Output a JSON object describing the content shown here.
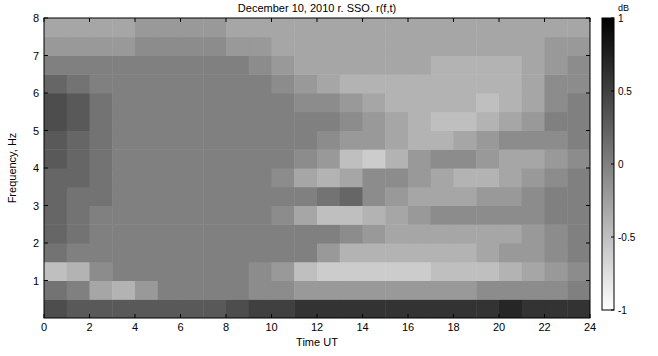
{
  "chart_data": {
    "type": "heatmap",
    "title": "December 10, 2010 r. SSO. r(f,t)",
    "xlabel": "Time UT",
    "ylabel": "Frequency, Hz",
    "color": "gray",
    "xlim": [
      0,
      24
    ],
    "ylim": [
      0,
      8
    ],
    "xticks": [
      0,
      2,
      4,
      6,
      8,
      10,
      12,
      14,
      16,
      18,
      20,
      22,
      24
    ],
    "yticks": [
      1,
      2,
      3,
      4,
      5,
      6,
      7,
      8
    ],
    "x_edges": [
      0,
      1,
      2,
      3,
      4,
      5,
      6,
      7,
      8,
      9,
      10,
      11,
      12,
      13,
      14,
      15,
      16,
      17,
      18,
      19,
      20,
      21,
      22,
      23,
      24
    ],
    "y_edges": [
      0,
      0.5,
      1,
      1.5,
      2,
      2.5,
      3,
      3.5,
      4,
      4.5,
      5,
      5.5,
      6,
      6.5,
      7,
      7.5,
      8
    ],
    "zlabel": "dB",
    "zlim": [
      -1,
      1
    ],
    "zticks": [
      -1,
      -0.5,
      0,
      0.5,
      1
    ],
    "values": [
      [
        0.4,
        0.3,
        0.3,
        0.3,
        0.3,
        0.3,
        0.3,
        0.3,
        0.4,
        0.5,
        0.5,
        0.6,
        0.6,
        0.6,
        0.6,
        0.6,
        0.6,
        0.6,
        0.6,
        0.6,
        0.7,
        0.6,
        0.6,
        0.6
      ],
      [
        0.1,
        0.0,
        -0.3,
        -0.4,
        -0.2,
        0.0,
        0.0,
        0.0,
        0.0,
        -0.1,
        -0.1,
        -0.2,
        -0.2,
        -0.2,
        -0.2,
        -0.2,
        -0.2,
        -0.2,
        -0.2,
        -0.1,
        -0.1,
        -0.1,
        -0.1,
        0.0
      ],
      [
        -0.5,
        -0.4,
        -0.1,
        0.0,
        0.0,
        0.0,
        0.0,
        0.0,
        0.0,
        -0.1,
        -0.2,
        -0.5,
        -0.6,
        -0.6,
        -0.6,
        -0.6,
        -0.6,
        -0.5,
        -0.5,
        -0.5,
        -0.4,
        -0.3,
        -0.2,
        -0.1
      ],
      [
        0.1,
        0.0,
        0.0,
        0.0,
        0.0,
        0.0,
        0.0,
        0.0,
        0.0,
        0.0,
        0.0,
        0.0,
        -0.2,
        -0.4,
        -0.4,
        -0.4,
        -0.4,
        -0.4,
        -0.4,
        -0.3,
        -0.2,
        -0.2,
        -0.1,
        0.0
      ],
      [
        0.2,
        0.1,
        0.0,
        0.0,
        0.0,
        0.0,
        0.0,
        0.0,
        0.0,
        0.0,
        0.0,
        0.0,
        0.0,
        -0.1,
        -0.2,
        -0.3,
        -0.3,
        -0.3,
        -0.3,
        -0.3,
        -0.3,
        -0.2,
        -0.1,
        0.0
      ],
      [
        0.2,
        0.1,
        0.0,
        0.0,
        0.0,
        0.0,
        0.0,
        0.0,
        0.0,
        0.0,
        -0.1,
        -0.3,
        -0.5,
        -0.5,
        -0.4,
        -0.3,
        -0.2,
        -0.1,
        -0.1,
        -0.1,
        -0.1,
        -0.1,
        0.0,
        0.0
      ],
      [
        0.2,
        0.1,
        0.1,
        0.0,
        0.0,
        0.0,
        0.0,
        0.0,
        0.0,
        0.0,
        0.0,
        0.0,
        0.1,
        0.2,
        -0.1,
        -0.2,
        -0.3,
        -0.3,
        -0.3,
        -0.2,
        -0.2,
        -0.1,
        0.0,
        0.0
      ],
      [
        0.2,
        0.2,
        0.1,
        0.0,
        0.0,
        0.0,
        0.0,
        0.0,
        0.0,
        0.0,
        -0.1,
        -0.3,
        -0.4,
        -0.3,
        -0.1,
        -0.1,
        -0.2,
        -0.3,
        -0.4,
        -0.4,
        -0.3,
        -0.2,
        -0.1,
        0.0
      ],
      [
        0.3,
        0.2,
        0.1,
        0.0,
        0.0,
        0.0,
        0.0,
        0.0,
        0.0,
        0.0,
        0.0,
        -0.1,
        -0.2,
        -0.5,
        -0.6,
        -0.4,
        -0.2,
        -0.1,
        -0.1,
        -0.2,
        -0.3,
        -0.3,
        -0.2,
        -0.1
      ],
      [
        0.3,
        0.2,
        0.1,
        0.0,
        0.0,
        0.0,
        0.0,
        0.0,
        0.0,
        0.0,
        0.0,
        0.0,
        -0.1,
        -0.2,
        -0.2,
        -0.3,
        -0.4,
        -0.4,
        -0.3,
        -0.2,
        -0.1,
        -0.1,
        -0.1,
        0.0
      ],
      [
        0.4,
        0.3,
        0.1,
        0.0,
        0.0,
        0.0,
        0.0,
        0.0,
        0.0,
        0.0,
        0.0,
        0.0,
        0.0,
        -0.1,
        -0.2,
        -0.3,
        -0.4,
        -0.5,
        -0.5,
        -0.4,
        -0.3,
        -0.2,
        0.0,
        0.0
      ],
      [
        0.4,
        0.3,
        0.1,
        0.0,
        0.0,
        0.0,
        0.0,
        0.0,
        0.0,
        0.0,
        0.0,
        -0.1,
        -0.1,
        -0.2,
        -0.3,
        -0.4,
        -0.4,
        -0.4,
        -0.4,
        -0.5,
        -0.4,
        -0.3,
        -0.1,
        0.0
      ],
      [
        0.2,
        0.1,
        0.0,
        0.0,
        0.0,
        0.0,
        0.0,
        0.0,
        0.0,
        0.0,
        -0.1,
        -0.2,
        -0.3,
        -0.4,
        -0.4,
        -0.4,
        -0.4,
        -0.4,
        -0.4,
        -0.4,
        -0.4,
        -0.3,
        -0.1,
        -0.1
      ],
      [
        0.0,
        0.0,
        0.0,
        0.0,
        0.0,
        0.0,
        0.0,
        0.0,
        0.0,
        -0.1,
        -0.2,
        -0.3,
        -0.3,
        -0.3,
        -0.3,
        -0.3,
        -0.3,
        -0.4,
        -0.4,
        -0.4,
        -0.4,
        -0.3,
        -0.2,
        -0.1
      ],
      [
        -0.2,
        -0.2,
        -0.2,
        -0.2,
        -0.1,
        -0.1,
        -0.1,
        -0.1,
        -0.2,
        -0.2,
        -0.3,
        -0.3,
        -0.3,
        -0.3,
        -0.3,
        -0.3,
        -0.3,
        -0.3,
        -0.3,
        -0.3,
        -0.3,
        -0.3,
        -0.2,
        -0.2
      ],
      [
        -0.3,
        -0.3,
        -0.3,
        -0.3,
        -0.2,
        -0.2,
        -0.2,
        -0.2,
        -0.3,
        -0.3,
        -0.3,
        -0.3,
        -0.3,
        -0.3,
        -0.3,
        -0.3,
        -0.3,
        -0.3,
        -0.3,
        -0.3,
        -0.3,
        -0.3,
        -0.3,
        -0.3
      ]
    ]
  }
}
